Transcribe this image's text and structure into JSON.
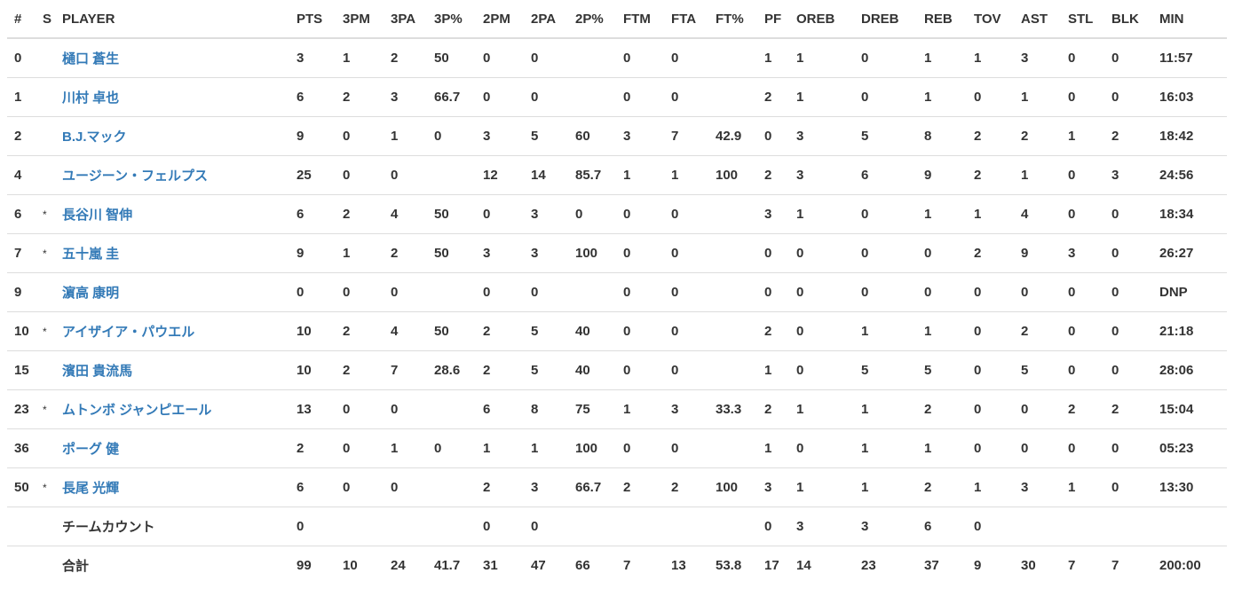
{
  "columns": [
    "#",
    "S",
    "PLAYER",
    "PTS",
    "3PM",
    "3PA",
    "3P%",
    "2PM",
    "2PA",
    "2P%",
    "FTM",
    "FTA",
    "FT%",
    "PF",
    "OREB",
    "DREB",
    "REB",
    "TOV",
    "AST",
    "STL",
    "BLK",
    "MIN"
  ],
  "link_color": "#337ab7",
  "rows": [
    {
      "cells": [
        "0",
        "",
        "樋口 蒼生",
        "3",
        "1",
        "2",
        "50",
        "0",
        "0",
        "",
        "0",
        "0",
        "",
        "1",
        "1",
        "0",
        "1",
        "1",
        "3",
        "0",
        "0",
        "11:57"
      ],
      "link": true
    },
    {
      "cells": [
        "1",
        "",
        "川村 卓也",
        "6",
        "2",
        "3",
        "66.7",
        "0",
        "0",
        "",
        "0",
        "0",
        "",
        "2",
        "1",
        "0",
        "1",
        "0",
        "1",
        "0",
        "0",
        "16:03"
      ],
      "link": true
    },
    {
      "cells": [
        "2",
        "",
        "B.J.マック",
        "9",
        "0",
        "1",
        "0",
        "3",
        "5",
        "60",
        "3",
        "7",
        "42.9",
        "0",
        "3",
        "5",
        "8",
        "2",
        "2",
        "1",
        "2",
        "18:42"
      ],
      "link": true
    },
    {
      "cells": [
        "4",
        "",
        "ユージーン・フェルプス",
        "25",
        "0",
        "0",
        "",
        "12",
        "14",
        "85.7",
        "1",
        "1",
        "100",
        "2",
        "3",
        "6",
        "9",
        "2",
        "1",
        "0",
        "3",
        "24:56"
      ],
      "link": true
    },
    {
      "cells": [
        "6",
        "*",
        "長谷川 智伸",
        "6",
        "2",
        "4",
        "50",
        "0",
        "3",
        "0",
        "0",
        "0",
        "",
        "3",
        "1",
        "0",
        "1",
        "1",
        "4",
        "0",
        "0",
        "18:34"
      ],
      "link": true
    },
    {
      "cells": [
        "7",
        "*",
        "五十嵐 圭",
        "9",
        "1",
        "2",
        "50",
        "3",
        "3",
        "100",
        "0",
        "0",
        "",
        "0",
        "0",
        "0",
        "0",
        "2",
        "9",
        "3",
        "0",
        "26:27"
      ],
      "link": true
    },
    {
      "cells": [
        "9",
        "",
        "濵高 康明",
        "0",
        "0",
        "0",
        "",
        "0",
        "0",
        "",
        "0",
        "0",
        "",
        "0",
        "0",
        "0",
        "0",
        "0",
        "0",
        "0",
        "0",
        "DNP"
      ],
      "link": true
    },
    {
      "cells": [
        "10",
        "*",
        "アイザイア・パウエル",
        "10",
        "2",
        "4",
        "50",
        "2",
        "5",
        "40",
        "0",
        "0",
        "",
        "2",
        "0",
        "1",
        "1",
        "0",
        "2",
        "0",
        "0",
        "21:18"
      ],
      "link": true
    },
    {
      "cells": [
        "15",
        "",
        "濱田 貴流馬",
        "10",
        "2",
        "7",
        "28.6",
        "2",
        "5",
        "40",
        "0",
        "0",
        "",
        "1",
        "0",
        "5",
        "5",
        "0",
        "5",
        "0",
        "0",
        "28:06"
      ],
      "link": true
    },
    {
      "cells": [
        "23",
        "*",
        "ムトンボ ジャンピエール",
        "13",
        "0",
        "0",
        "",
        "6",
        "8",
        "75",
        "1",
        "3",
        "33.3",
        "2",
        "1",
        "1",
        "2",
        "0",
        "0",
        "2",
        "2",
        "15:04"
      ],
      "link": true
    },
    {
      "cells": [
        "36",
        "",
        "ポーグ 健",
        "2",
        "0",
        "1",
        "0",
        "1",
        "1",
        "100",
        "0",
        "0",
        "",
        "1",
        "0",
        "1",
        "1",
        "0",
        "0",
        "0",
        "0",
        "05:23"
      ],
      "link": true
    },
    {
      "cells": [
        "50",
        "*",
        "長尾 光輝",
        "6",
        "0",
        "0",
        "",
        "2",
        "3",
        "66.7",
        "2",
        "2",
        "100",
        "3",
        "1",
        "1",
        "2",
        "1",
        "3",
        "1",
        "0",
        "13:30"
      ],
      "link": true
    },
    {
      "cells": [
        "",
        "",
        "チームカウント",
        "0",
        "",
        "",
        "",
        "0",
        "0",
        "",
        "",
        "",
        "",
        "0",
        "3",
        "3",
        "6",
        "0",
        "",
        "",
        "",
        ""
      ],
      "link": false
    },
    {
      "cells": [
        "",
        "",
        "合計",
        "99",
        "10",
        "24",
        "41.7",
        "31",
        "47",
        "66",
        "7",
        "13",
        "53.8",
        "17",
        "14",
        "23",
        "37",
        "9",
        "30",
        "7",
        "7",
        "200:00"
      ],
      "link": false
    }
  ]
}
